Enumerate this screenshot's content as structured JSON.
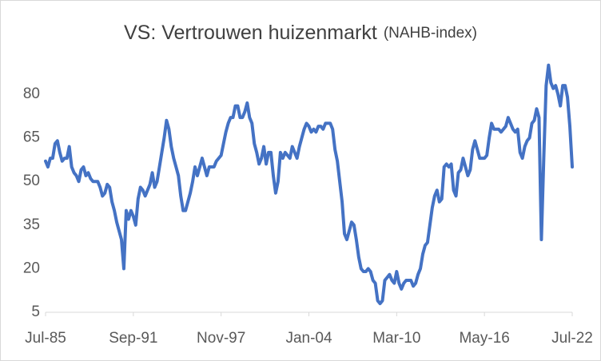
{
  "chart_data": {
    "type": "line",
    "title": "VS: Vertrouwen huizenmarkt",
    "subtitle": "(NAHB-index)",
    "categories": [
      "Jul-85",
      null,
      null,
      null,
      null,
      null,
      null,
      null,
      null,
      null,
      null,
      null,
      null,
      null,
      null,
      null,
      null,
      null,
      null,
      null,
      null,
      null,
      null,
      null,
      null,
      null,
      null,
      null,
      null,
      null,
      null,
      null,
      null,
      null,
      null,
      null,
      null,
      "Sep-91",
      null,
      null,
      null,
      null,
      null,
      null,
      null,
      null,
      null,
      null,
      null,
      null,
      null,
      null,
      null,
      null,
      null,
      null,
      null,
      null,
      null,
      null,
      null,
      null,
      null,
      null,
      null,
      null,
      null,
      null,
      null,
      null,
      null,
      null,
      null,
      null,
      "Nov-97",
      null,
      null,
      null,
      null,
      null,
      null,
      null,
      null,
      null,
      null,
      null,
      null,
      null,
      null,
      null,
      null,
      null,
      null,
      null,
      null,
      null,
      null,
      null,
      null,
      null,
      null,
      null,
      null,
      null,
      null,
      null,
      null,
      null,
      null,
      null,
      null,
      "Jan-04",
      null,
      null,
      null,
      null,
      null,
      null,
      null,
      null,
      null,
      null,
      null,
      null,
      null,
      null,
      null,
      null,
      null,
      null,
      null,
      null,
      null,
      null,
      null,
      null,
      null,
      null,
      null,
      null,
      null,
      null,
      null,
      null,
      null,
      null,
      null,
      null,
      "Mar-10",
      null,
      null,
      null,
      null,
      null,
      null,
      null,
      null,
      null,
      null,
      null,
      null,
      null,
      null,
      null,
      null,
      null,
      null,
      null,
      null,
      null,
      null,
      null,
      null,
      null,
      null,
      null,
      null,
      null,
      null,
      null,
      null,
      null,
      null,
      null,
      null,
      "May-16",
      null,
      null,
      null,
      null,
      null,
      null,
      null,
      null,
      null,
      null,
      null,
      null,
      null,
      null,
      null,
      null,
      null,
      null,
      null,
      null,
      null,
      null,
      null,
      null,
      null,
      null,
      null,
      null,
      null,
      null,
      null,
      null,
      null,
      null,
      null,
      null,
      "Jul-22"
    ],
    "series": [
      {
        "name": "NAHB-index",
        "color": "#4472c4",
        "values": [
          57,
          55,
          58,
          58,
          63,
          64,
          60,
          57,
          58,
          58,
          62,
          55,
          53,
          52,
          50,
          54,
          55,
          52,
          53,
          51,
          50,
          50,
          50,
          48,
          45,
          46,
          49,
          48,
          43,
          40,
          36,
          33,
          30,
          20,
          40,
          37,
          40,
          38,
          35,
          44,
          48,
          47,
          45,
          47,
          49,
          53,
          48,
          50,
          55,
          60,
          65,
          71,
          68,
          62,
          58,
          55,
          52,
          45,
          40,
          40,
          43,
          46,
          50,
          55,
          52,
          55,
          58,
          55,
          52,
          55,
          55,
          55,
          57,
          58,
          59,
          63,
          67,
          70,
          72,
          72,
          76,
          76,
          72,
          72,
          74,
          77,
          72,
          70,
          63,
          60,
          56,
          58,
          62,
          56,
          60,
          60,
          52,
          46,
          50,
          60,
          58,
          60,
          59,
          58,
          62,
          60,
          58,
          62,
          65,
          68,
          70,
          69,
          67,
          68,
          67,
          69,
          69,
          68,
          70,
          70,
          70,
          68,
          61,
          57,
          50,
          43,
          32,
          30,
          33,
          36,
          35,
          30,
          24,
          20,
          19,
          19,
          20,
          19,
          16,
          15,
          9,
          8,
          9,
          16,
          17,
          18,
          16,
          15,
          19,
          15,
          13,
          15,
          16,
          16,
          16,
          14,
          15,
          18,
          20,
          25,
          28,
          29,
          35,
          41,
          45,
          47,
          43,
          44,
          55,
          56,
          55,
          56,
          47,
          45,
          53,
          54,
          58,
          55,
          52,
          54,
          61,
          64,
          61,
          58,
          58,
          58,
          59,
          65,
          70,
          68,
          68,
          68,
          67,
          68,
          69,
          72,
          70,
          68,
          67,
          68,
          60,
          58,
          62,
          64,
          65,
          70,
          71,
          75,
          72,
          30,
          58,
          83,
          90,
          84,
          82,
          83,
          80,
          76,
          83,
          83,
          79,
          69,
          55
        ]
      }
    ],
    "ylim": [
      5,
      91
    ],
    "yticks": [
      5,
      20,
      35,
      50,
      65,
      80
    ],
    "grid": false
  }
}
